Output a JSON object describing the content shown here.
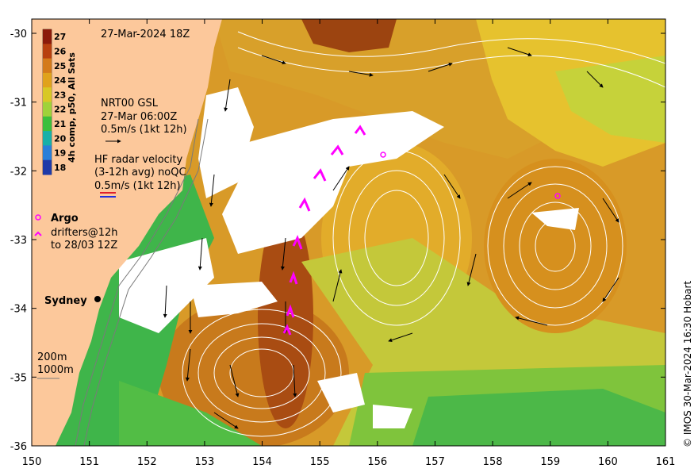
{
  "timestamp": "27-Mar-2024 18Z",
  "colorbar": {
    "label": "4h comp, p50, All Sats",
    "ticks": [
      "27",
      "26",
      "25",
      "24",
      "23",
      "22",
      "21",
      "20",
      "19",
      "18"
    ],
    "colors": [
      "#8b1a0a",
      "#b8400f",
      "#d47a1a",
      "#e0a21c",
      "#d8c825",
      "#9fd23a",
      "#3cbf3c",
      "#18b0a8",
      "#2a7fd8",
      "#1e3aa8"
    ]
  },
  "gsl_legend": {
    "line1": "NRT00 GSL",
    "line2": "27-Mar 06:00Z",
    "line3": "0.5m/s (1kt 12h)"
  },
  "hf_legend": {
    "line1": "HF radar velocity",
    "line2": "(3-12h avg) noQC",
    "line3": "0.5m/s (1kt 12h)"
  },
  "argo_label": "Argo",
  "drifters": {
    "line1": "drifters@12h",
    "line2": "to 28/03 12Z"
  },
  "place_sydney": "Sydney",
  "isobaths": {
    "depth1": "200m",
    "depth2": "1000m"
  },
  "credit": "© IMOS 30-Mar-2024 16:30 Hobart",
  "x_axis": {
    "ticks": [
      "150",
      "151",
      "152",
      "153",
      "154",
      "155",
      "156",
      "157",
      "158",
      "159",
      "160",
      "161"
    ]
  },
  "y_axis": {
    "ticks": [
      "-30",
      "-31",
      "-32",
      "-33",
      "-34",
      "-35",
      "-36"
    ]
  },
  "map_colors": {
    "land": "#fcc89b",
    "warm": "#d08420",
    "mid": "#e6b230",
    "cool": "#9ecf3c",
    "cold": "#3fb54a",
    "core": "#9c4410",
    "cloud": "#ffffff"
  }
}
